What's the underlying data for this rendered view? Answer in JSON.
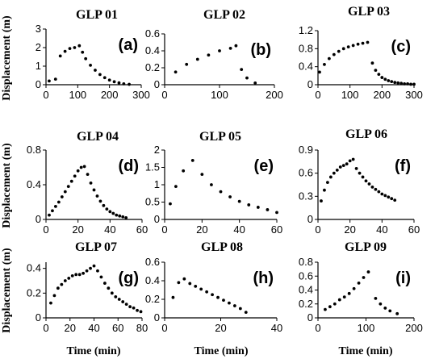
{
  "chart_data": [
    {
      "panel": "GLP 01",
      "label": "(a)",
      "type": "scatter",
      "xlim": [
        0,
        300
      ],
      "ylim": [
        0,
        3
      ],
      "xticks": [
        "0",
        "100",
        "200",
        "300"
      ],
      "yticks": [
        "0",
        "1",
        "2",
        "3"
      ],
      "x": [
        10,
        30,
        45,
        60,
        75,
        90,
        105,
        115,
        125,
        140,
        155,
        170,
        185,
        200,
        215,
        230,
        245,
        262
      ],
      "y": [
        0.2,
        0.3,
        1.55,
        1.8,
        1.95,
        2.0,
        2.1,
        1.75,
        1.4,
        1.05,
        0.78,
        0.55,
        0.38,
        0.25,
        0.16,
        0.1,
        0.05,
        0.02
      ]
    },
    {
      "panel": "GLP 02",
      "label": "(b)",
      "type": "scatter",
      "xlim": [
        0,
        200
      ],
      "ylim": [
        0,
        0.6
      ],
      "xticks": [
        "0",
        "100",
        "200"
      ],
      "yticks": [
        "0",
        "0.2",
        "0.4",
        "0.6"
      ],
      "x": [
        20,
        40,
        60,
        80,
        100,
        120,
        130,
        140,
        150,
        165
      ],
      "y": [
        0.15,
        0.24,
        0.3,
        0.35,
        0.4,
        0.43,
        0.46,
        0.18,
        0.08,
        0.02
      ]
    },
    {
      "panel": "GLP 03",
      "label": "(c)",
      "type": "scatter",
      "xlim": [
        0,
        300
      ],
      "ylim": [
        0,
        1.2
      ],
      "xticks": [
        "0",
        "100",
        "200",
        "300"
      ],
      "yticks": [
        "0",
        "0.4",
        "0.8",
        "1.2"
      ],
      "x": [
        5,
        20,
        35,
        50,
        65,
        80,
        95,
        110,
        125,
        140,
        155,
        170,
        180,
        190,
        200,
        210,
        220,
        230,
        240,
        250,
        260,
        270,
        280,
        290,
        300
      ],
      "y": [
        0.28,
        0.45,
        0.58,
        0.67,
        0.74,
        0.8,
        0.84,
        0.87,
        0.9,
        0.92,
        0.94,
        0.48,
        0.32,
        0.23,
        0.16,
        0.12,
        0.09,
        0.07,
        0.05,
        0.04,
        0.03,
        0.02,
        0.02,
        0.01,
        0.01
      ]
    },
    {
      "panel": "GLP 04",
      "label": "(d)",
      "type": "scatter",
      "xlim": [
        0,
        60
      ],
      "ylim": [
        0,
        0.8
      ],
      "xticks": [
        "0",
        "20",
        "40",
        "60"
      ],
      "yticks": [
        "0",
        "0.4",
        "0.8"
      ],
      "x": [
        2,
        4,
        6,
        8,
        10,
        12,
        14,
        16,
        18,
        20,
        22,
        24,
        26,
        28,
        30,
        32,
        34,
        36,
        38,
        40,
        42,
        44,
        46,
        48,
        50
      ],
      "y": [
        0.05,
        0.1,
        0.15,
        0.2,
        0.26,
        0.32,
        0.38,
        0.44,
        0.5,
        0.56,
        0.6,
        0.61,
        0.52,
        0.42,
        0.34,
        0.27,
        0.21,
        0.16,
        0.12,
        0.09,
        0.07,
        0.05,
        0.04,
        0.03,
        0.02
      ]
    },
    {
      "panel": "GLP 05",
      "label": "(e)",
      "type": "scatter",
      "xlim": [
        0,
        60
      ],
      "ylim": [
        0,
        2
      ],
      "xticks": [
        "0",
        "20",
        "40",
        "60"
      ],
      "yticks": [
        "0",
        "0.5",
        "1",
        "1.5",
        "2"
      ],
      "x": [
        3,
        6,
        10,
        15,
        20,
        25,
        30,
        35,
        40,
        45,
        50,
        55,
        60
      ],
      "y": [
        0.45,
        0.95,
        1.4,
        1.7,
        1.3,
        1.0,
        0.8,
        0.65,
        0.52,
        0.42,
        0.35,
        0.28,
        0.2
      ]
    },
    {
      "panel": "GLP 06",
      "label": "(f)",
      "type": "scatter",
      "xlim": [
        0,
        60
      ],
      "ylim": [
        0,
        0.9
      ],
      "xticks": [
        "0",
        "20",
        "40",
        "60"
      ],
      "yticks": [
        "0",
        "0.3",
        "0.6",
        "0.9"
      ],
      "x": [
        2,
        4,
        6,
        8,
        10,
        12,
        14,
        16,
        18,
        20,
        22,
        24,
        26,
        28,
        30,
        32,
        34,
        36,
        38,
        40,
        42,
        44,
        46,
        48
      ],
      "y": [
        0.24,
        0.38,
        0.48,
        0.55,
        0.6,
        0.64,
        0.68,
        0.7,
        0.72,
        0.76,
        0.78,
        0.66,
        0.6,
        0.55,
        0.5,
        0.46,
        0.42,
        0.39,
        0.36,
        0.33,
        0.31,
        0.29,
        0.27,
        0.25
      ]
    },
    {
      "panel": "GLP 07",
      "label": "(g)",
      "type": "scatter",
      "xlim": [
        0,
        80
      ],
      "ylim": [
        0,
        0.45
      ],
      "xticks": [
        "0",
        "20",
        "40",
        "60",
        "80"
      ],
      "yticks": [
        "0",
        "0.2",
        "0.4"
      ],
      "x": [
        4,
        7,
        10,
        13,
        16,
        19,
        22,
        25,
        28,
        31,
        34,
        37,
        40,
        43,
        46,
        49,
        52,
        55,
        58,
        61,
        64,
        67,
        70,
        73,
        76,
        79
      ],
      "y": [
        0.12,
        0.18,
        0.24,
        0.27,
        0.3,
        0.32,
        0.34,
        0.35,
        0.35,
        0.36,
        0.38,
        0.4,
        0.42,
        0.38,
        0.33,
        0.28,
        0.24,
        0.2,
        0.17,
        0.15,
        0.13,
        0.11,
        0.09,
        0.08,
        0.06,
        0.05
      ]
    },
    {
      "panel": "GLP 08",
      "label": "(h)",
      "type": "scatter",
      "xlim": [
        0,
        40
      ],
      "ylim": [
        0,
        0.6
      ],
      "xticks": [
        "0",
        "20",
        "40"
      ],
      "yticks": [
        "0",
        "0.2",
        "0.4",
        "0.6"
      ],
      "x": [
        3,
        5,
        7,
        9,
        11,
        13,
        15,
        17,
        19,
        21,
        23,
        25,
        27,
        29
      ],
      "y": [
        0.22,
        0.38,
        0.42,
        0.37,
        0.34,
        0.31,
        0.28,
        0.25,
        0.22,
        0.19,
        0.16,
        0.13,
        0.1,
        0.06
      ]
    },
    {
      "panel": "GLP 09",
      "label": "(i)",
      "type": "scatter",
      "xlim": [
        0,
        200
      ],
      "ylim": [
        0,
        0.8
      ],
      "xticks": [
        "0",
        "100",
        "200"
      ],
      "yticks": [
        "0",
        "0.2",
        "0.4",
        "0.6",
        "0.8"
      ],
      "x": [
        15,
        25,
        35,
        45,
        55,
        65,
        75,
        85,
        95,
        105,
        120,
        130,
        140,
        150,
        165
      ],
      "y": [
        0.12,
        0.16,
        0.2,
        0.26,
        0.3,
        0.35,
        0.42,
        0.5,
        0.58,
        0.66,
        0.28,
        0.2,
        0.14,
        0.1,
        0.06
      ]
    }
  ],
  "axes": {
    "ylabel": "Displacement (m)",
    "xlabel": "Time (min)"
  }
}
